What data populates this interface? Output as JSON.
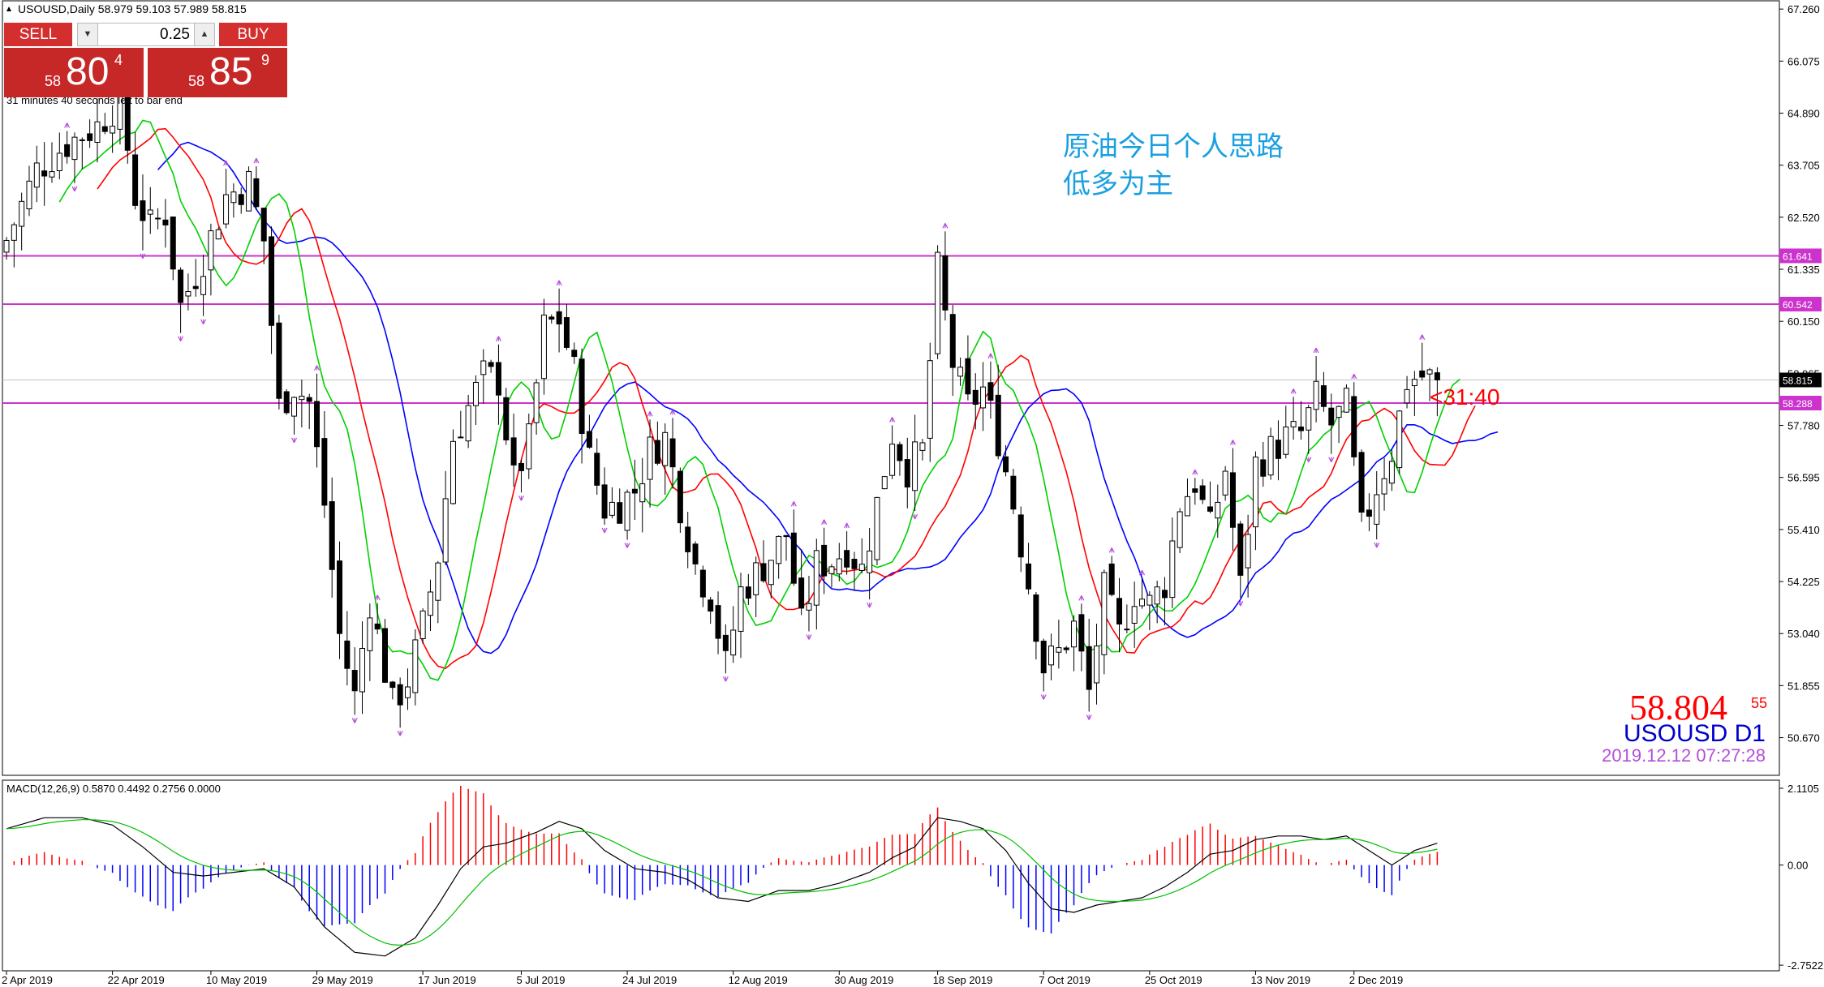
{
  "chart_header": {
    "symbol_info": "USOUSD,Daily  58.979 59.103 57.989 58.815",
    "timer_text": "31 minutes 40 seconds left to bar end"
  },
  "trade_panel": {
    "sell_label": "SELL",
    "buy_label": "BUY",
    "lot_size": "0.25",
    "sell_price_prefix": "58",
    "sell_price_big": "80",
    "sell_price_sup": "4",
    "buy_price_prefix": "58",
    "buy_price_big": "85",
    "buy_price_sup": "9"
  },
  "annotation": {
    "line1": "原油今日个人思路",
    "line2": "低多为主",
    "color": "#1aa0e0"
  },
  "countdown_label": "<31:40",
  "big_price": {
    "main": "58.804",
    "sup": "55"
  },
  "symbol_label": "USOUSD D1",
  "timestamp": "2019.12.12 07:27:28",
  "colors": {
    "bull": "#ffffff",
    "bear": "#000000",
    "ma_fast": "#00d000",
    "ma_mid": "#ff0000",
    "ma_slow": "#0000ff",
    "level": "#cc33cc",
    "macd_line": "#000000",
    "signal_line": "#00c000",
    "hist_pos": "#ff0000",
    "hist_neg": "#0000ff",
    "fractal": "#b44ed8"
  },
  "chart_data": {
    "type": "candlestick",
    "price_axis_ticks": [
      "67.260",
      "66.075",
      "64.890",
      "63.705",
      "62.520",
      "61.335",
      "60.150",
      "58.965",
      "57.780",
      "56.595",
      "55.410",
      "54.225",
      "53.040",
      "51.855",
      "50.670"
    ],
    "ylim": [
      50.2,
      67.3
    ],
    "horizontal_levels": [
      {
        "value": 61.641,
        "label": "61.641"
      },
      {
        "value": 60.542,
        "label": "60.542"
      },
      {
        "value": 58.288,
        "label": "58.288"
      }
    ],
    "current_price": {
      "value": 58.815,
      "label": "58.815"
    },
    "date_labels": [
      "2 Apr 2019",
      "22 Apr 2019",
      "10 May 2019",
      "29 May 2019",
      "17 Jun 2019",
      "5 Jul 2019",
      "24 Jul 2019",
      "12 Aug 2019",
      "30 Aug 2019",
      "18 Sep 2019",
      "7 Oct 2019",
      "25 Oct 2019",
      "13 Nov 2019",
      "2 Dec 2019"
    ],
    "date_label_bar_index": [
      0,
      14,
      27,
      41,
      55,
      68,
      82,
      96,
      110,
      123,
      137,
      151,
      165,
      178
    ],
    "close_anchors": [
      [
        0,
        62.0
      ],
      [
        4,
        63.6
      ],
      [
        8,
        64.2
      ],
      [
        12,
        64.6
      ],
      [
        15,
        65.2
      ],
      [
        17,
        63.0
      ],
      [
        19,
        62.3
      ],
      [
        21,
        62.6
      ],
      [
        23,
        60.5
      ],
      [
        26,
        61.6
      ],
      [
        29,
        63.0
      ],
      [
        32,
        63.3
      ],
      [
        34,
        62.0
      ],
      [
        36,
        58.2
      ],
      [
        38,
        58.7
      ],
      [
        40,
        58.3
      ],
      [
        42,
        56.0
      ],
      [
        44,
        53.0
      ],
      [
        46,
        51.6
      ],
      [
        48,
        53.8
      ],
      [
        51,
        51.4
      ],
      [
        53,
        52.0
      ],
      [
        55,
        53.2
      ],
      [
        57,
        54.8
      ],
      [
        59,
        57.5
      ],
      [
        61,
        58.2
      ],
      [
        63,
        58.9
      ],
      [
        65,
        58.8
      ],
      [
        67,
        56.5
      ],
      [
        69,
        57.4
      ],
      [
        71,
        60.0
      ],
      [
        73,
        60.2
      ],
      [
        75,
        59.0
      ],
      [
        77,
        57.0
      ],
      [
        79,
        55.9
      ],
      [
        81,
        56.0
      ],
      [
        83,
        56.3
      ],
      [
        85,
        57.2
      ],
      [
        87,
        57.5
      ],
      [
        89,
        56.0
      ],
      [
        91,
        54.6
      ],
      [
        93,
        53.9
      ],
      [
        95,
        52.3
      ],
      [
        97,
        54.0
      ],
      [
        99,
        54.4
      ],
      [
        101,
        54.8
      ],
      [
        103,
        55.3
      ],
      [
        105,
        53.2
      ],
      [
        107,
        54.6
      ],
      [
        109,
        54.7
      ],
      [
        111,
        55.0
      ],
      [
        113,
        54.5
      ],
      [
        115,
        56.0
      ],
      [
        117,
        57.6
      ],
      [
        119,
        56.8
      ],
      [
        121,
        57.2
      ],
      [
        123,
        61.3
      ],
      [
        125,
        59.2
      ],
      [
        127,
        58.2
      ],
      [
        129,
        58.6
      ],
      [
        131,
        57.5
      ],
      [
        133,
        56.0
      ],
      [
        135,
        54.2
      ],
      [
        137,
        52.3
      ],
      [
        139,
        52.6
      ],
      [
        141,
        53.2
      ],
      [
        143,
        51.7
      ],
      [
        145,
        54.0
      ],
      [
        147,
        53.0
      ],
      [
        149,
        54.0
      ],
      [
        151,
        53.7
      ],
      [
        153,
        54.2
      ],
      [
        155,
        56.0
      ],
      [
        157,
        56.5
      ],
      [
        159,
        55.4
      ],
      [
        161,
        56.8
      ],
      [
        163,
        54.1
      ],
      [
        165,
        56.9
      ],
      [
        167,
        57.2
      ],
      [
        169,
        57.5
      ],
      [
        171,
        57.6
      ],
      [
        173,
        58.4
      ],
      [
        175,
        57.8
      ],
      [
        177,
        58.2
      ],
      [
        179,
        55.4
      ],
      [
        181,
        56.4
      ],
      [
        183,
        57.2
      ],
      [
        185,
        58.8
      ],
      [
        187,
        58.9
      ],
      [
        189,
        58.815
      ]
    ],
    "ma_period_fast": 5,
    "ma_period_mid": 8,
    "ma_period_slow": 13,
    "macd": {
      "label": "MACD(12,26,9) 0.5870 0.4492 0.2756 0.0000",
      "axis_ticks": [
        "2.1105",
        "0.00",
        "-2.7522"
      ],
      "ylim": [
        -2.75,
        2.11
      ],
      "anchors": [
        [
          0,
          1.0
        ],
        [
          5,
          1.3
        ],
        [
          10,
          1.3
        ],
        [
          14,
          1.1
        ],
        [
          18,
          0.5
        ],
        [
          22,
          -0.2
        ],
        [
          26,
          -0.3
        ],
        [
          30,
          -0.2
        ],
        [
          34,
          -0.1
        ],
        [
          38,
          -0.6
        ],
        [
          42,
          -1.7
        ],
        [
          46,
          -2.4
        ],
        [
          50,
          -2.5
        ],
        [
          54,
          -2.0
        ],
        [
          57,
          -1.1
        ],
        [
          60,
          -0.1
        ],
        [
          63,
          0.5
        ],
        [
          66,
          0.6
        ],
        [
          70,
          0.9
        ],
        [
          73,
          1.2
        ],
        [
          76,
          1.0
        ],
        [
          79,
          0.4
        ],
        [
          83,
          -0.1
        ],
        [
          87,
          -0.2
        ],
        [
          90,
          -0.4
        ],
        [
          94,
          -0.9
        ],
        [
          98,
          -1.0
        ],
        [
          102,
          -0.7
        ],
        [
          106,
          -0.7
        ],
        [
          110,
          -0.5
        ],
        [
          114,
          -0.2
        ],
        [
          117,
          0.2
        ],
        [
          120,
          0.5
        ],
        [
          123,
          1.3
        ],
        [
          126,
          1.2
        ],
        [
          129,
          1.0
        ],
        [
          132,
          0.4
        ],
        [
          135,
          -0.5
        ],
        [
          138,
          -1.2
        ],
        [
          141,
          -1.3
        ],
        [
          144,
          -1.1
        ],
        [
          147,
          -1.0
        ],
        [
          150,
          -0.9
        ],
        [
          153,
          -0.6
        ],
        [
          156,
          -0.2
        ],
        [
          159,
          0.3
        ],
        [
          162,
          0.4
        ],
        [
          165,
          0.7
        ],
        [
          168,
          0.8
        ],
        [
          171,
          0.8
        ],
        [
          174,
          0.7
        ],
        [
          177,
          0.8
        ],
        [
          180,
          0.4
        ],
        [
          183,
          0.0
        ],
        [
          186,
          0.4
        ],
        [
          189,
          0.6
        ]
      ]
    }
  }
}
